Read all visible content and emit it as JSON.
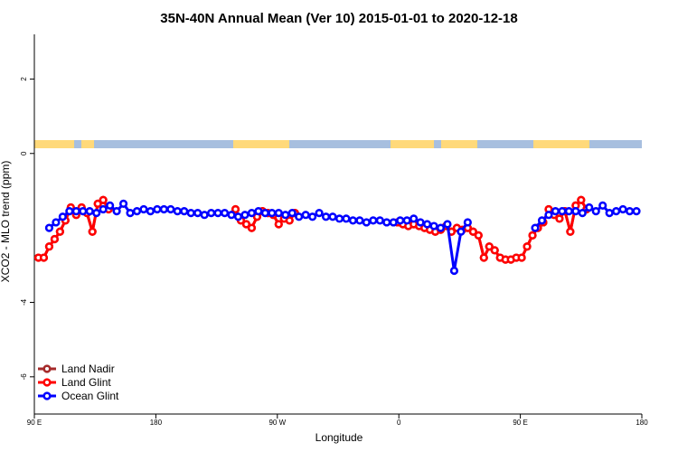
{
  "chart_data": {
    "type": "line",
    "title": "35N-40N Annual Mean (Ver 10)   2015-01-01 to 2020-12-18",
    "x_label": "Longitude",
    "y_label": "XCO2 - MLO trend (ppm)",
    "xlim": [
      90,
      540
    ],
    "xticks": [
      {
        "value": 90,
        "label": "90 E"
      },
      180,
      {
        "value": 270,
        "label": "90 W"
      },
      {
        "value": 360,
        "label": "0"
      },
      {
        "value": 450,
        "label": "90 E"
      },
      {
        "value": 540,
        "label": "180"
      }
    ],
    "ylim": [
      -7.0,
      3.2
    ],
    "yticks": [
      -6,
      -4,
      0,
      2
    ],
    "legend": "bottom-left",
    "series": [
      {
        "name": "Land Nadir",
        "color": "#a52a2a",
        "x": [
          93,
          97,
          101,
          105,
          109,
          113,
          117,
          121,
          125,
          129,
          133,
          137,
          141,
          145,
          190,
          239,
          243,
          247,
          251,
          255,
          259,
          263,
          267,
          271,
          275,
          279,
          283,
          320,
          359,
          363,
          367,
          371,
          375,
          379,
          383,
          387,
          391,
          395,
          399,
          403,
          407,
          411,
          415,
          419,
          423,
          427,
          431,
          435,
          439,
          443,
          447,
          451,
          455,
          459,
          463,
          467,
          471,
          475,
          479,
          483,
          487,
          491,
          495,
          499
        ],
        "values": [
          -2.8,
          -2.8,
          -2.5,
          -2.3,
          -2.1,
          -1.8,
          -1.45,
          -1.65,
          -1.45,
          -1.6,
          -2.1,
          -1.35,
          -1.25,
          -1.5,
          null,
          -1.5,
          -1.8,
          -1.9,
          -2.0,
          -1.7,
          -1.55,
          -1.6,
          -1.65,
          -1.9,
          -1.75,
          -1.8,
          -1.6,
          null,
          -1.85,
          -1.9,
          -1.95,
          -1.9,
          -1.95,
          -2.0,
          -2.05,
          -2.1,
          -2.05,
          -1.95,
          -2.1,
          -2.0,
          -2.05,
          -2.0,
          -2.1,
          -2.2,
          -2.8,
          -2.5,
          -2.6,
          -2.8,
          -2.85,
          -2.85,
          -2.8,
          -2.8,
          -2.5,
          -2.2,
          -2.0,
          -1.85,
          -1.5,
          -1.65,
          -1.75,
          -1.55,
          -2.1,
          -1.4,
          -1.25,
          -1.5
        ]
      },
      {
        "name": "Land Glint",
        "color": "#ff0000",
        "x": [
          93,
          97,
          101,
          105,
          109,
          113,
          117,
          121,
          125,
          129,
          133,
          137,
          141,
          145,
          190,
          239,
          243,
          247,
          251,
          255,
          259,
          263,
          267,
          271,
          275,
          279,
          283,
          320,
          359,
          363,
          367,
          371,
          375,
          379,
          383,
          387,
          391,
          395,
          399,
          403,
          407,
          411,
          415,
          419,
          423,
          427,
          431,
          435,
          439,
          443,
          447,
          451,
          455,
          459,
          463,
          467,
          471,
          475,
          479,
          483,
          487,
          491,
          495,
          499
        ],
        "values": [
          -2.8,
          -2.8,
          -2.5,
          -2.3,
          -2.1,
          -1.8,
          -1.45,
          -1.65,
          -1.45,
          -1.6,
          -2.1,
          -1.35,
          -1.25,
          -1.5,
          null,
          -1.5,
          -1.8,
          -1.9,
          -2.0,
          -1.7,
          -1.55,
          -1.6,
          -1.65,
          -1.9,
          -1.75,
          -1.8,
          -1.6,
          null,
          -1.85,
          -1.9,
          -1.95,
          -1.9,
          -1.95,
          -2.0,
          -2.05,
          -2.1,
          -2.05,
          -1.95,
          -2.1,
          -2.0,
          -2.05,
          -2.0,
          -2.1,
          -2.2,
          -2.8,
          -2.5,
          -2.6,
          -2.8,
          -2.85,
          -2.85,
          -2.8,
          -2.8,
          -2.5,
          -2.2,
          -2.0,
          -1.85,
          -1.5,
          -1.65,
          -1.75,
          -1.55,
          -2.1,
          -1.4,
          -1.25,
          -1.5
        ]
      },
      {
        "name": "Ocean Glint",
        "color": "#0000ff",
        "x": [
          101,
          106,
          111,
          116,
          121,
          126,
          131,
          136,
          141,
          146,
          151,
          156,
          161,
          166,
          171,
          176,
          181,
          186,
          191,
          196,
          201,
          206,
          211,
          216,
          221,
          226,
          231,
          236,
          241,
          246,
          251,
          256,
          261,
          266,
          271,
          276,
          281,
          286,
          291,
          296,
          301,
          306,
          311,
          316,
          321,
          326,
          331,
          336,
          341,
          346,
          351,
          356,
          361,
          366,
          371,
          376,
          381,
          386,
          391,
          396,
          401,
          406,
          411,
          436,
          461,
          466,
          471,
          476,
          481,
          486,
          491,
          496,
          501,
          506,
          511,
          516,
          521,
          526,
          531,
          536
        ],
        "values": [
          -2.0,
          -1.85,
          -1.7,
          -1.55,
          -1.55,
          -1.55,
          -1.55,
          -1.6,
          -1.5,
          -1.4,
          -1.55,
          -1.35,
          -1.6,
          -1.55,
          -1.5,
          -1.55,
          -1.5,
          -1.5,
          -1.5,
          -1.55,
          -1.55,
          -1.6,
          -1.6,
          -1.65,
          -1.6,
          -1.6,
          -1.6,
          -1.65,
          -1.7,
          -1.65,
          -1.6,
          -1.55,
          -1.6,
          -1.6,
          -1.6,
          -1.65,
          -1.6,
          -1.7,
          -1.65,
          -1.7,
          -1.6,
          -1.7,
          -1.7,
          -1.75,
          -1.75,
          -1.8,
          -1.8,
          -1.85,
          -1.8,
          -1.8,
          -1.85,
          -1.85,
          -1.8,
          -1.8,
          -1.75,
          -1.85,
          -1.9,
          -1.95,
          -2.0,
          -1.9,
          -3.15,
          -2.1,
          -1.85,
          null,
          -2.0,
          -1.8,
          -1.65,
          -1.55,
          -1.55,
          -1.55,
          -1.55,
          -1.6,
          -1.45,
          -1.55,
          -1.4,
          -1.6,
          -1.55,
          -1.5,
          -1.55,
          -1.55
        ]
      }
    ]
  }
}
